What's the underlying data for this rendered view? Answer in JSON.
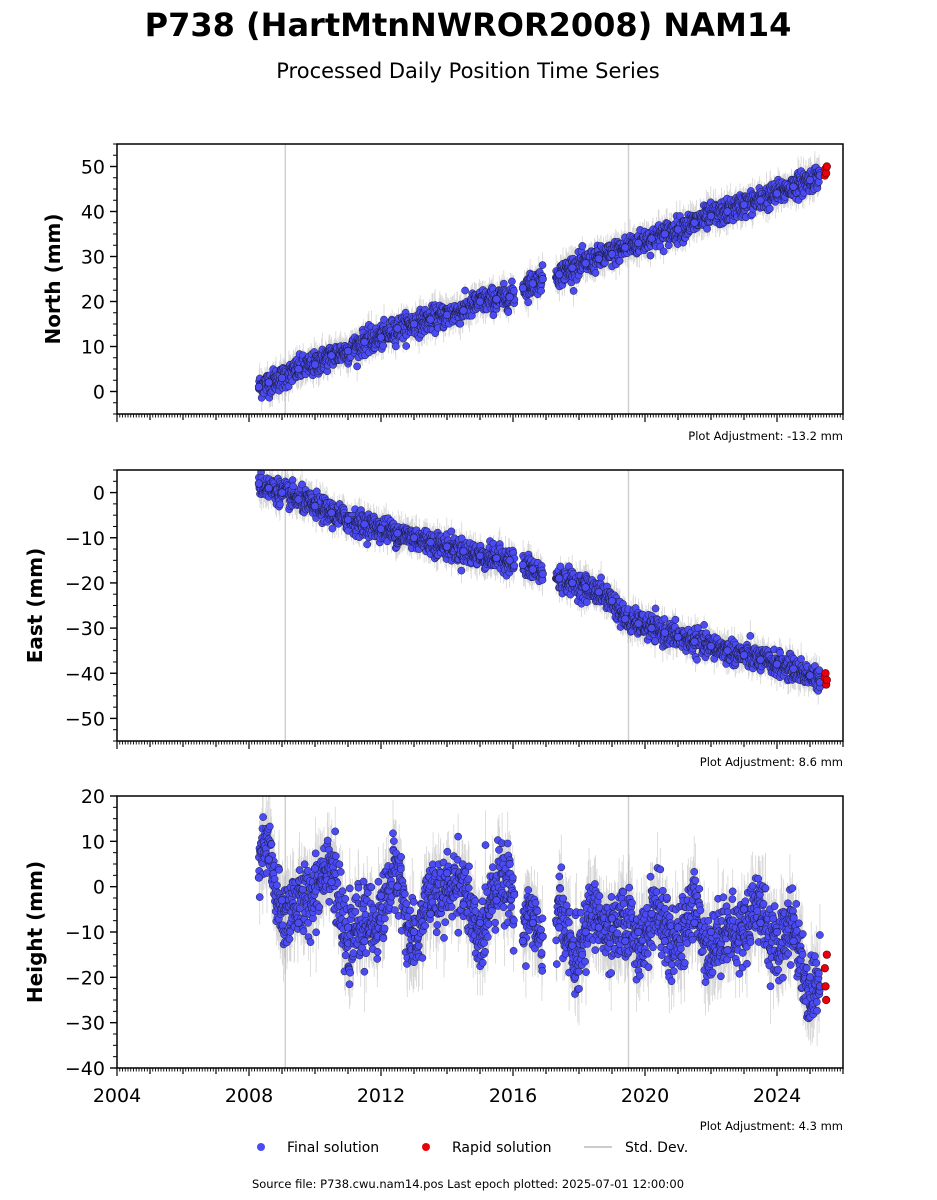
{
  "header": {
    "title": "P738 (HartMtnNWROR2008) NAM14",
    "subtitle": "Processed Daily Position Time Series"
  },
  "legend": {
    "final_label": "Final solution",
    "rapid_label": "Rapid solution",
    "stddev_label": "Std. Dev.",
    "placement": "bottom-center"
  },
  "footer": {
    "source": "Source file: P738.cwu.nam14.pos  Last epoch plotted: 2025-07-01 12:00:00"
  },
  "colors": {
    "final": "#4b4bf5",
    "rapid": "#e8000b",
    "stddev": "#b4b4b4",
    "event_line": "#d0d0d0"
  },
  "chart_data": [
    {
      "type": "scatter",
      "ylabel": "North (mm)",
      "xlim": [
        2004.0,
        2026.0
      ],
      "ylim": [
        -5,
        55
      ],
      "yticks": [
        0,
        10,
        20,
        30,
        40,
        50
      ],
      "ytick_labels": [
        "0",
        "10",
        "20",
        "30",
        "40",
        "50"
      ],
      "xtick_labels": [],
      "adjustment": "Plot Adjustment: -13.2 mm",
      "event_lines": [
        2009.1,
        2019.5
      ],
      "series": [
        {
          "name": "Final solution",
          "x": [
            2008.3,
            2008.6,
            2009.0,
            2009.5,
            2010.0,
            2010.5,
            2011.0,
            2011.5,
            2012.0,
            2012.5,
            2013.0,
            2013.5,
            2014.0,
            2014.5,
            2015.0,
            2015.5,
            2015.9,
            2016.3,
            2016.6,
            2016.9,
            2017.4,
            2017.8,
            2018.2,
            2018.6,
            2019.0,
            2019.4,
            2019.8,
            2020.2,
            2020.6,
            2021.0,
            2021.5,
            2022.0,
            2022.5,
            2023.0,
            2023.5,
            2024.0,
            2024.5,
            2025.0,
            2025.3
          ],
          "y": [
            1.0,
            2.0,
            3.0,
            5.0,
            6.0,
            8.0,
            9.0,
            11.0,
            12.0,
            14.0,
            15.0,
            16.0,
            17.0,
            18.0,
            20.0,
            20.5,
            21.0,
            23.0,
            24.0,
            25.0,
            26.0,
            27.5,
            28.5,
            29.5,
            30.5,
            32.0,
            33.0,
            34.0,
            35.0,
            36.0,
            37.5,
            39.0,
            40.0,
            41.5,
            42.5,
            44.0,
            45.5,
            47.0,
            48.0
          ]
        },
        {
          "name": "Rapid solution",
          "x": [
            2025.45,
            2025.47,
            2025.49,
            2025.51
          ],
          "y": [
            48.0,
            49.5,
            48.5,
            50.0
          ]
        }
      ]
    },
    {
      "type": "scatter",
      "ylabel": "East (mm)",
      "xlim": [
        2004.0,
        2026.0
      ],
      "ylim": [
        -55,
        5
      ],
      "yticks": [
        0,
        -10,
        -20,
        -30,
        -40,
        -50
      ],
      "ytick_labels": [
        "0",
        "−10",
        "−20",
        "−30",
        "−40",
        "−50"
      ],
      "xtick_labels": [],
      "adjustment": "Plot Adjustment: 8.6 mm",
      "event_lines": [
        2009.1,
        2019.5
      ],
      "series": [
        {
          "name": "Final solution",
          "x": [
            2008.3,
            2008.6,
            2009.0,
            2009.5,
            2010.0,
            2010.5,
            2011.0,
            2011.5,
            2012.0,
            2012.5,
            2013.0,
            2013.5,
            2014.0,
            2014.5,
            2015.0,
            2015.5,
            2015.9,
            2016.3,
            2016.6,
            2016.9,
            2017.4,
            2017.8,
            2018.2,
            2018.6,
            2019.0,
            2019.4,
            2019.8,
            2020.2,
            2020.6,
            2021.0,
            2021.5,
            2022.0,
            2022.5,
            2023.0,
            2023.5,
            2024.0,
            2024.5,
            2025.0,
            2025.3
          ],
          "y": [
            2.0,
            1.0,
            0.0,
            -1.5,
            -3.0,
            -4.5,
            -6.0,
            -7.0,
            -8.0,
            -9.0,
            -10.0,
            -11.0,
            -12.0,
            -13.0,
            -14.0,
            -14.5,
            -15.0,
            -16.0,
            -17.0,
            -18.0,
            -19.0,
            -20.0,
            -21.0,
            -22.0,
            -24.0,
            -28.0,
            -29.0,
            -30.0,
            -31.0,
            -32.0,
            -33.0,
            -34.0,
            -35.0,
            -36.0,
            -37.0,
            -38.0,
            -39.0,
            -40.5,
            -42.0
          ]
        },
        {
          "name": "Rapid solution",
          "x": [
            2025.45,
            2025.47,
            2025.49,
            2025.51
          ],
          "y": [
            -41.0,
            -40.0,
            -42.5,
            -41.5
          ]
        }
      ]
    },
    {
      "type": "scatter",
      "ylabel": "Height (mm)",
      "xlim": [
        2004.0,
        2026.0
      ],
      "ylim": [
        -40,
        20
      ],
      "yticks": [
        20,
        10,
        0,
        -10,
        -20,
        -30,
        -40
      ],
      "ytick_labels": [
        "20",
        "10",
        "0",
        "−10",
        "−20",
        "−30",
        "−40"
      ],
      "xticks": [
        2004,
        2008,
        2012,
        2016,
        2020,
        2024
      ],
      "xtick_labels": [
        "2004",
        "2008",
        "2012",
        "2016",
        "2020",
        "2024"
      ],
      "adjustment": "Plot Adjustment: 4.3 mm",
      "event_lines": [
        2009.1,
        2019.5
      ],
      "series": [
        {
          "name": "Final solution",
          "x": [
            2008.3,
            2008.6,
            2009.0,
            2009.5,
            2010.0,
            2010.5,
            2011.0,
            2011.5,
            2012.0,
            2012.5,
            2013.0,
            2013.5,
            2014.0,
            2014.5,
            2015.0,
            2015.5,
            2015.9,
            2016.3,
            2016.6,
            2016.9,
            2017.4,
            2017.8,
            2018.2,
            2018.6,
            2019.0,
            2019.4,
            2019.8,
            2020.2,
            2020.6,
            2021.0,
            2021.5,
            2022.0,
            2022.5,
            2023.0,
            2023.5,
            2024.0,
            2024.5,
            2025.0,
            2025.3
          ],
          "y": [
            2.0,
            6.0,
            -3.0,
            -8.0,
            4.0,
            1.0,
            -9.0,
            -12.0,
            -2.0,
            0.0,
            -10.0,
            -6.0,
            3.0,
            -4.0,
            -8.0,
            -3.0,
            5.0,
            -12.0,
            -8.0,
            -11.0,
            -9.0,
            -13.0,
            -10.0,
            -9.0,
            -7.0,
            -12.0,
            -10.0,
            -6.0,
            -12.0,
            -9.0,
            -8.0,
            -10.0,
            -14.0,
            -5.0,
            -8.0,
            -10.0,
            -12.0,
            -20.0,
            -22.0
          ]
        },
        {
          "name": "Rapid solution",
          "x": [
            2025.45,
            2025.47,
            2025.49,
            2025.51
          ],
          "y": [
            -18.0,
            -22.0,
            -25.0,
            -15.0
          ]
        }
      ]
    }
  ]
}
